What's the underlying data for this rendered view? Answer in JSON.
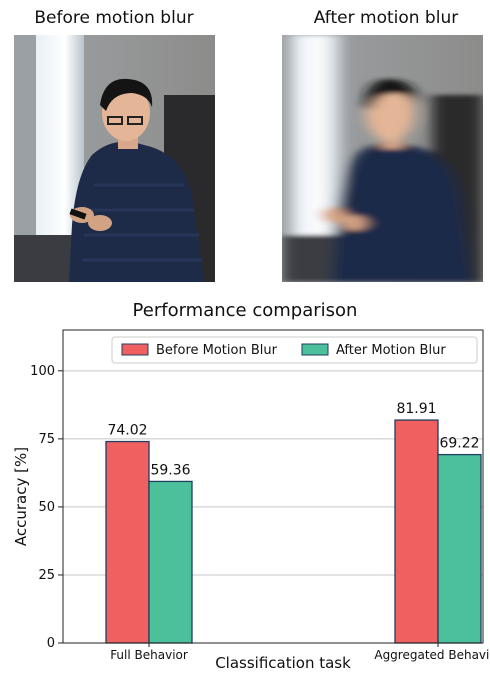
{
  "figure": {
    "left_title": "Before motion blur",
    "right_title": "After motion blur"
  },
  "chart_data": {
    "type": "bar",
    "title": "Performance comparison",
    "xlabel": "Classification task",
    "ylabel": "Accuracy [%]",
    "categories": [
      "Full Behavior",
      "Aggregated Behavior"
    ],
    "series": [
      {
        "name": "Before Motion Blur",
        "values": [
          74.02,
          81.91
        ],
        "color": "#f06060"
      },
      {
        "name": "After Motion Blur",
        "values": [
          59.36,
          69.22
        ],
        "color": "#4cc09a"
      }
    ],
    "data_labels": [
      "74.02",
      "59.36",
      "81.91",
      "69.22"
    ],
    "ylim": [
      0,
      115
    ],
    "yticks": [
      "0",
      "25",
      "50",
      "75",
      "100"
    ],
    "grid": true,
    "legend_position": "top-right",
    "bar_edge_color": "#1f3f5f"
  }
}
